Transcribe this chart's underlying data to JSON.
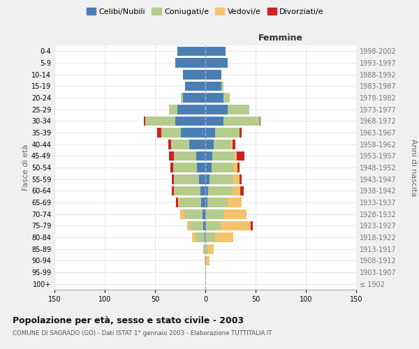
{
  "age_groups": [
    "100+",
    "95-99",
    "90-94",
    "85-89",
    "80-84",
    "75-79",
    "70-74",
    "65-69",
    "60-64",
    "55-59",
    "50-54",
    "45-49",
    "40-44",
    "35-39",
    "30-34",
    "25-29",
    "20-24",
    "15-19",
    "10-14",
    "5-9",
    "0-4"
  ],
  "birth_years": [
    "≤ 1902",
    "1903-1907",
    "1908-1912",
    "1913-1917",
    "1918-1922",
    "1923-1927",
    "1928-1932",
    "1933-1937",
    "1938-1942",
    "1943-1947",
    "1948-1952",
    "1953-1957",
    "1958-1962",
    "1963-1967",
    "1968-1972",
    "1973-1977",
    "1978-1982",
    "1983-1987",
    "1988-1992",
    "1993-1997",
    "1998-2002"
  ],
  "male": {
    "celibi": [
      0,
      0,
      0,
      0,
      1,
      2,
      3,
      4,
      5,
      6,
      8,
      9,
      16,
      24,
      30,
      28,
      22,
      20,
      22,
      30,
      28
    ],
    "coniugati": [
      0,
      0,
      1,
      2,
      9,
      14,
      18,
      22,
      26,
      25,
      24,
      22,
      18,
      20,
      30,
      8,
      2,
      0,
      0,
      0,
      0
    ],
    "vedovi": [
      0,
      0,
      0,
      0,
      3,
      2,
      4,
      1,
      0,
      0,
      0,
      0,
      0,
      0,
      0,
      0,
      0,
      0,
      0,
      0,
      0
    ],
    "divorziati": [
      0,
      0,
      0,
      0,
      0,
      0,
      0,
      2,
      2,
      2,
      3,
      5,
      3,
      4,
      1,
      0,
      0,
      0,
      0,
      0,
      0
    ]
  },
  "female": {
    "nubili": [
      0,
      0,
      0,
      0,
      0,
      1,
      1,
      2,
      3,
      4,
      6,
      7,
      8,
      10,
      18,
      22,
      18,
      16,
      16,
      22,
      20
    ],
    "coniugate": [
      0,
      0,
      0,
      2,
      10,
      14,
      18,
      20,
      24,
      24,
      22,
      22,
      18,
      24,
      36,
      22,
      6,
      2,
      0,
      0,
      0
    ],
    "vedove": [
      0,
      1,
      4,
      6,
      18,
      30,
      22,
      14,
      8,
      6,
      4,
      2,
      1,
      0,
      0,
      0,
      0,
      0,
      0,
      0,
      0
    ],
    "divorziate": [
      0,
      0,
      0,
      0,
      0,
      2,
      0,
      0,
      3,
      2,
      2,
      8,
      3,
      2,
      1,
      0,
      0,
      0,
      0,
      0,
      0
    ]
  },
  "colors": {
    "celibi": "#4a7fb5",
    "coniugati": "#b5cc8e",
    "vedovi": "#f5c36b",
    "divorziati": "#cc2222"
  },
  "xlim": 150,
  "title": "Popolazione per età, sesso e stato civile - 2003",
  "subtitle": "COMUNE DI SAGRADO (GO) - Dati ISTAT 1° gennaio 2003 - Elaborazione TUTTITALIA.IT",
  "ylabel_left": "Fasce di età",
  "ylabel_right": "Anni di nascita",
  "legend_labels": [
    "Celibi/Nubili",
    "Coniugati/e",
    "Vedovi/e",
    "Divorziati/e"
  ],
  "bg_color": "#f0f0f0",
  "plot_bg": "#ffffff"
}
